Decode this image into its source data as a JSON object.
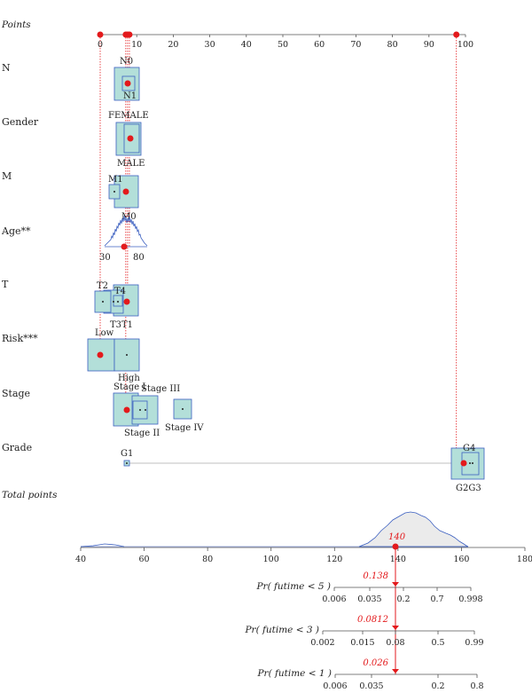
{
  "chart_data": {
    "type": "nomogram",
    "points_scale": {
      "label": "Points",
      "ticks": [
        "0",
        "10",
        "20",
        "30",
        "40",
        "50",
        "60",
        "70",
        "80",
        "90",
        "100"
      ]
    },
    "variables": [
      {
        "name": "N",
        "categories": [
          {
            "label": "N0",
            "points": 7.5
          },
          {
            "label": "N1",
            "points": 7.5
          }
        ]
      },
      {
        "name": "Gender",
        "categories": [
          {
            "label": "FEMALE",
            "points": 8
          },
          {
            "label": "MALE",
            "points": 8
          }
        ]
      },
      {
        "name": "M",
        "categories": [
          {
            "label": "M1",
            "points": 4
          },
          {
            "label": "M0",
            "points": 7
          }
        ]
      },
      {
        "name": "Age**",
        "range_labels": [
          "30",
          "80"
        ],
        "selected_points": 6.5
      },
      {
        "name": "T",
        "categories": [
          {
            "label": "T2",
            "points": 0
          },
          {
            "label": "T4",
            "points": 4.5
          },
          {
            "label": "T3",
            "points": 4
          },
          {
            "label": "T1",
            "points": 7
          }
        ]
      },
      {
        "name": "Risk***",
        "categories": [
          {
            "label": "Low",
            "points": 0
          },
          {
            "label": "High",
            "points": 7
          }
        ]
      },
      {
        "name": "Stage",
        "categories": [
          {
            "label": "Stage I",
            "points": 7
          },
          {
            "label": "Stage III",
            "points": 11
          },
          {
            "label": "Stage II",
            "points": 10
          },
          {
            "label": "Stage IV",
            "points": 22
          }
        ]
      },
      {
        "name": "Grade",
        "categories": [
          {
            "label": "G1",
            "points": 7
          },
          {
            "label": "G4",
            "points": 100
          },
          {
            "label": "G2G3",
            "points": 100
          }
        ]
      }
    ],
    "selected_point_values": [
      0,
      7,
      7.5,
      8,
      97.5
    ],
    "total_points": {
      "label": "Total points",
      "ticks": [
        "40",
        "60",
        "80",
        "100",
        "120",
        "140",
        "160",
        "180"
      ],
      "selected_value": "140"
    },
    "probability_axes": [
      {
        "label": "Pr( futime < 5 )",
        "ticks": [
          "0.006",
          "0.035",
          "0.2",
          "0.7",
          "0.998"
        ],
        "value": "0.138"
      },
      {
        "label": "Pr( futime < 3 )",
        "ticks": [
          "0.002",
          "0.015",
          "0.08",
          "0.5",
          "0.99"
        ],
        "value": "0.0812"
      },
      {
        "label": "Pr( futime < 1 )",
        "ticks": [
          "0.006",
          "0.035",
          "0.2",
          "0.8"
        ],
        "value": "0.026"
      }
    ]
  },
  "colors": {
    "box_fill": "#b3dfd9",
    "box_stroke": "#3b5fc0",
    "red": "#e31a1c",
    "density_fill": "#ebebeb",
    "density_stroke": "#3b5fc0"
  }
}
